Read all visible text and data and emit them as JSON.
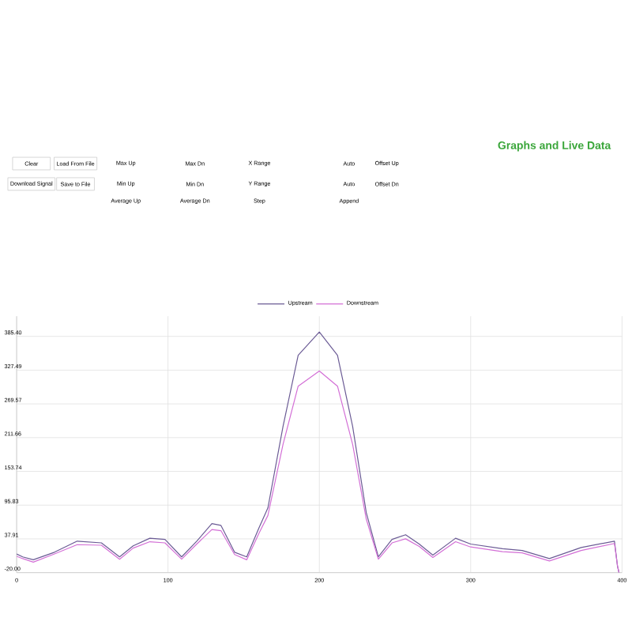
{
  "chart_data": {
    "type": "line",
    "title": "Graphs and Live Data",
    "annotations": [
      "Clear",
      "Load From File",
      "Download Signal",
      "Save to File",
      "Max Up",
      "Min Up",
      "Average Up",
      "Max Dn",
      "Min Dn",
      "Average Dn",
      "X Range",
      "Y Range",
      "Step",
      "Auto",
      "Auto",
      "Append",
      "Offset Up",
      "Offset Dn"
    ],
    "x": [
      0,
      4,
      11,
      25,
      40,
      56,
      68,
      77,
      88,
      98,
      109,
      119,
      129,
      135,
      144,
      152,
      160,
      166,
      176,
      186,
      200,
      212,
      222,
      231,
      239,
      248,
      257,
      266,
      275,
      290,
      300,
      321,
      334,
      352,
      373,
      395,
      397,
      398
    ],
    "series": [
      {
        "name": "Upstream",
        "color": "#6b5b95",
        "values": [
          12,
          7,
          2,
          15,
          34,
          31,
          7,
          26,
          39,
          37,
          7,
          34,
          64,
          61,
          15,
          7,
          56,
          91,
          231,
          353,
          393,
          353,
          231,
          83,
          7,
          37,
          45,
          29,
          10,
          39,
          29,
          21,
          18,
          4,
          23,
          34,
          -9,
          -20
        ]
      },
      {
        "name": "Downstream",
        "color": "#d36fd6",
        "values": [
          8,
          4,
          -2,
          12,
          28,
          27,
          3,
          22,
          33,
          31,
          3,
          29,
          54,
          52,
          11,
          2,
          47,
          78,
          200,
          300,
          326,
          300,
          200,
          72,
          3,
          31,
          38,
          25,
          6,
          33,
          24,
          16,
          14,
          0,
          18,
          30,
          -8,
          -20
        ]
      }
    ],
    "xlim": [
      0,
      400
    ],
    "xticks": [
      0,
      100,
      200,
      300,
      400
    ],
    "ylim": [
      -20,
      420
    ],
    "yticks": [
      {
        "value": -20,
        "label": "-20.00"
      },
      {
        "value": 37.91,
        "label": "37.91"
      },
      {
        "value": 95.83,
        "label": "95.83"
      },
      {
        "value": 153.74,
        "label": "153.74"
      },
      {
        "value": 211.66,
        "label": "211.66"
      },
      {
        "value": 269.57,
        "label": "269.57"
      },
      {
        "value": 327.49,
        "label": "327.49"
      },
      {
        "value": 385.4,
        "label": "385.40"
      }
    ],
    "grid": true,
    "legend": "top",
    "marker": "none",
    "line_style": "solid"
  }
}
